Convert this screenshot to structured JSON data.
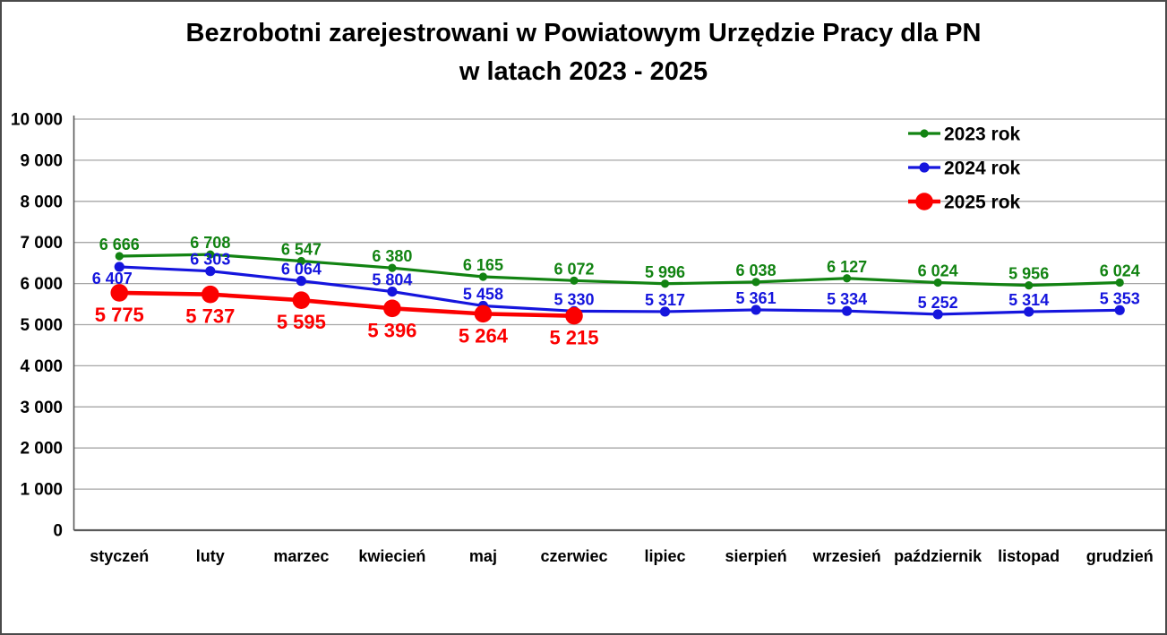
{
  "title": {
    "line1": "Bezrobotni zarejestrowani w Powiatowym Urzędzie Pracy dla PN",
    "line2": "w latach 2023 - 2025"
  },
  "chart_data": {
    "type": "line",
    "title": "Bezrobotni zarejestrowani w Powiatowym Urzędzie Pracy dla PN w latach 2023 - 2025",
    "categories": [
      "styczeń",
      "luty",
      "marzec",
      "kwiecień",
      "maj",
      "czerwiec",
      "lipiec",
      "sierpień",
      "wrzesień",
      "październik",
      "listopad",
      "grudzień"
    ],
    "series": [
      {
        "name": "2023 rok",
        "color": "#128312",
        "values": [
          6666,
          6708,
          6547,
          6380,
          6165,
          6072,
          5996,
          6038,
          6127,
          6024,
          5956,
          6024
        ]
      },
      {
        "name": "2024 rok",
        "color": "#1515dd",
        "values": [
          6407,
          6303,
          6064,
          5804,
          5458,
          5330,
          5317,
          5361,
          5334,
          5252,
          5314,
          5353
        ]
      },
      {
        "name": "2025 rok",
        "color": "#fb0000",
        "values": [
          5775,
          5737,
          5595,
          5396,
          5264,
          5215
        ]
      }
    ],
    "xlabel": "",
    "ylabel": "",
    "ylim": [
      0,
      10000
    ],
    "ytick_step": 1000,
    "grid": "horizontal",
    "gridline_color": "#a6a6a6",
    "axis_color": "#595959",
    "tick_label_color": "#000000",
    "legend_position": "top-right",
    "legend_entries": [
      "2023 rok",
      "2024 rok",
      "2025 rok"
    ],
    "data_labels": true,
    "number_format": "space-thousands"
  }
}
